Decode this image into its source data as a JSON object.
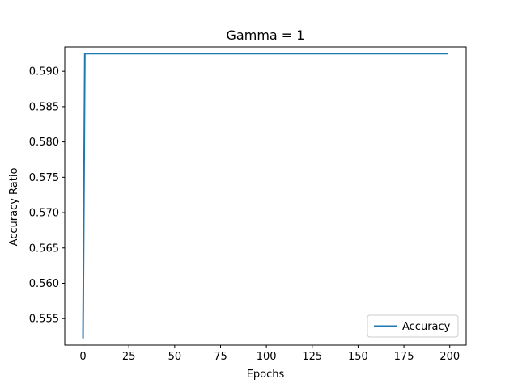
{
  "chart_data": {
    "type": "line",
    "title": "Gamma = 1",
    "xlabel": "Epochs",
    "ylabel": "Accuracy Ratio",
    "xlim": [
      -9.95,
      208.95
    ],
    "ylim": [
      0.55125,
      0.59345
    ],
    "xticks": [
      0,
      25,
      50,
      75,
      100,
      125,
      150,
      175,
      200
    ],
    "yticks": [
      0.555,
      0.56,
      0.565,
      0.57,
      0.575,
      0.58,
      0.585,
      0.59
    ],
    "ytick_labels": [
      "0.555",
      "0.560",
      "0.565",
      "0.570",
      "0.575",
      "0.580",
      "0.585",
      "0.590"
    ],
    "grid": false,
    "legend_position": "lower-right",
    "series": [
      {
        "name": "Accuracy",
        "color": "#1f77b4",
        "x": [
          0,
          1,
          199
        ],
        "y": [
          0.5522,
          0.5925,
          0.5925
        ]
      }
    ]
  }
}
